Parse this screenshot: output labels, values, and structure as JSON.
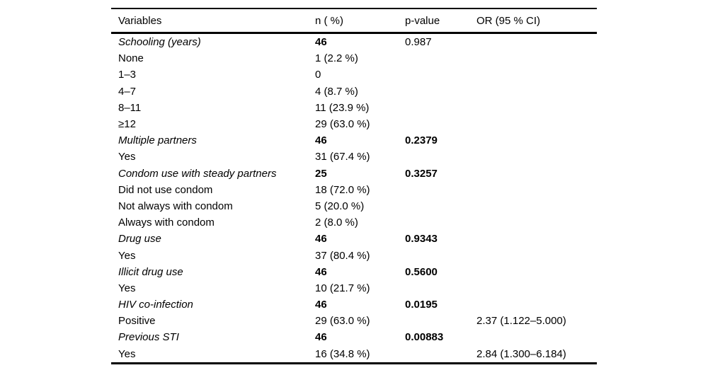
{
  "colors": {
    "background": "#ffffff",
    "text": "#000000",
    "rule": "#000000"
  },
  "table": {
    "columns": [
      "Variables",
      "n ( %)",
      "p-value",
      "OR (95 % CI)"
    ],
    "rows": [
      {
        "variable": "Schooling (years)",
        "variable_italic": true,
        "n": "46",
        "n_bold": true,
        "p": "0.987",
        "p_bold": false,
        "or": ""
      },
      {
        "variable": "None",
        "variable_italic": false,
        "n": "1 (2.2 %)",
        "n_bold": false,
        "p": "",
        "p_bold": false,
        "or": ""
      },
      {
        "variable": "1–3",
        "variable_italic": false,
        "n": "0",
        "n_bold": false,
        "p": "",
        "p_bold": false,
        "or": ""
      },
      {
        "variable": "4–7",
        "variable_italic": false,
        "n": "4 (8.7 %)",
        "n_bold": false,
        "p": "",
        "p_bold": false,
        "or": ""
      },
      {
        "variable": "8–11",
        "variable_italic": false,
        "n": "11 (23.9 %)",
        "n_bold": false,
        "p": "",
        "p_bold": false,
        "or": ""
      },
      {
        "variable": "≥12",
        "variable_italic": false,
        "n": "29 (63.0 %)",
        "n_bold": false,
        "p": "",
        "p_bold": false,
        "or": ""
      },
      {
        "variable": "Multiple partners",
        "variable_italic": true,
        "n": "46",
        "n_bold": true,
        "p": "0.2379",
        "p_bold": true,
        "or": ""
      },
      {
        "variable": "Yes",
        "variable_italic": false,
        "n": "31 (67.4 %)",
        "n_bold": false,
        "p": "",
        "p_bold": false,
        "or": ""
      },
      {
        "variable": "Condom use with steady partners",
        "variable_italic": true,
        "n": "25",
        "n_bold": true,
        "p": "0.3257",
        "p_bold": true,
        "or": ""
      },
      {
        "variable": "Did not use condom",
        "variable_italic": false,
        "n": "18 (72.0 %)",
        "n_bold": false,
        "p": "",
        "p_bold": false,
        "or": ""
      },
      {
        "variable": "Not always with condom",
        "variable_italic": false,
        "n": "5 (20.0 %)",
        "n_bold": false,
        "p": "",
        "p_bold": false,
        "or": ""
      },
      {
        "variable": "Always with condom",
        "variable_italic": false,
        "n": "2 (8.0 %)",
        "n_bold": false,
        "p": "",
        "p_bold": false,
        "or": ""
      },
      {
        "variable": "Drug use",
        "variable_italic": true,
        "n": "46",
        "n_bold": true,
        "p": "0.9343",
        "p_bold": true,
        "or": ""
      },
      {
        "variable": "Yes",
        "variable_italic": false,
        "n": "37 (80.4 %)",
        "n_bold": false,
        "p": "",
        "p_bold": false,
        "or": ""
      },
      {
        "variable": "Illicit drug use",
        "variable_italic": true,
        "n": "46",
        "n_bold": true,
        "p": "0.5600",
        "p_bold": true,
        "or": ""
      },
      {
        "variable": "Yes",
        "variable_italic": false,
        "n": "10 (21.7 %)",
        "n_bold": false,
        "p": "",
        "p_bold": false,
        "or": ""
      },
      {
        "variable": "HIV co-infection",
        "variable_italic": true,
        "n": "46",
        "n_bold": true,
        "p": "0.0195",
        "p_bold": true,
        "or": ""
      },
      {
        "variable": "Positive",
        "variable_italic": false,
        "n": "29 (63.0 %)",
        "n_bold": false,
        "p": "",
        "p_bold": false,
        "or": "2.37 (1.122–5.000)"
      },
      {
        "variable": "Previous STI",
        "variable_italic": true,
        "n": "46",
        "n_bold": true,
        "p": "0.00883",
        "p_bold": true,
        "or": ""
      },
      {
        "variable": "Yes",
        "variable_italic": false,
        "n": "16 (34.8 %)",
        "n_bold": false,
        "p": "",
        "p_bold": false,
        "or": "2.84 (1.300–6.184)"
      }
    ]
  }
}
